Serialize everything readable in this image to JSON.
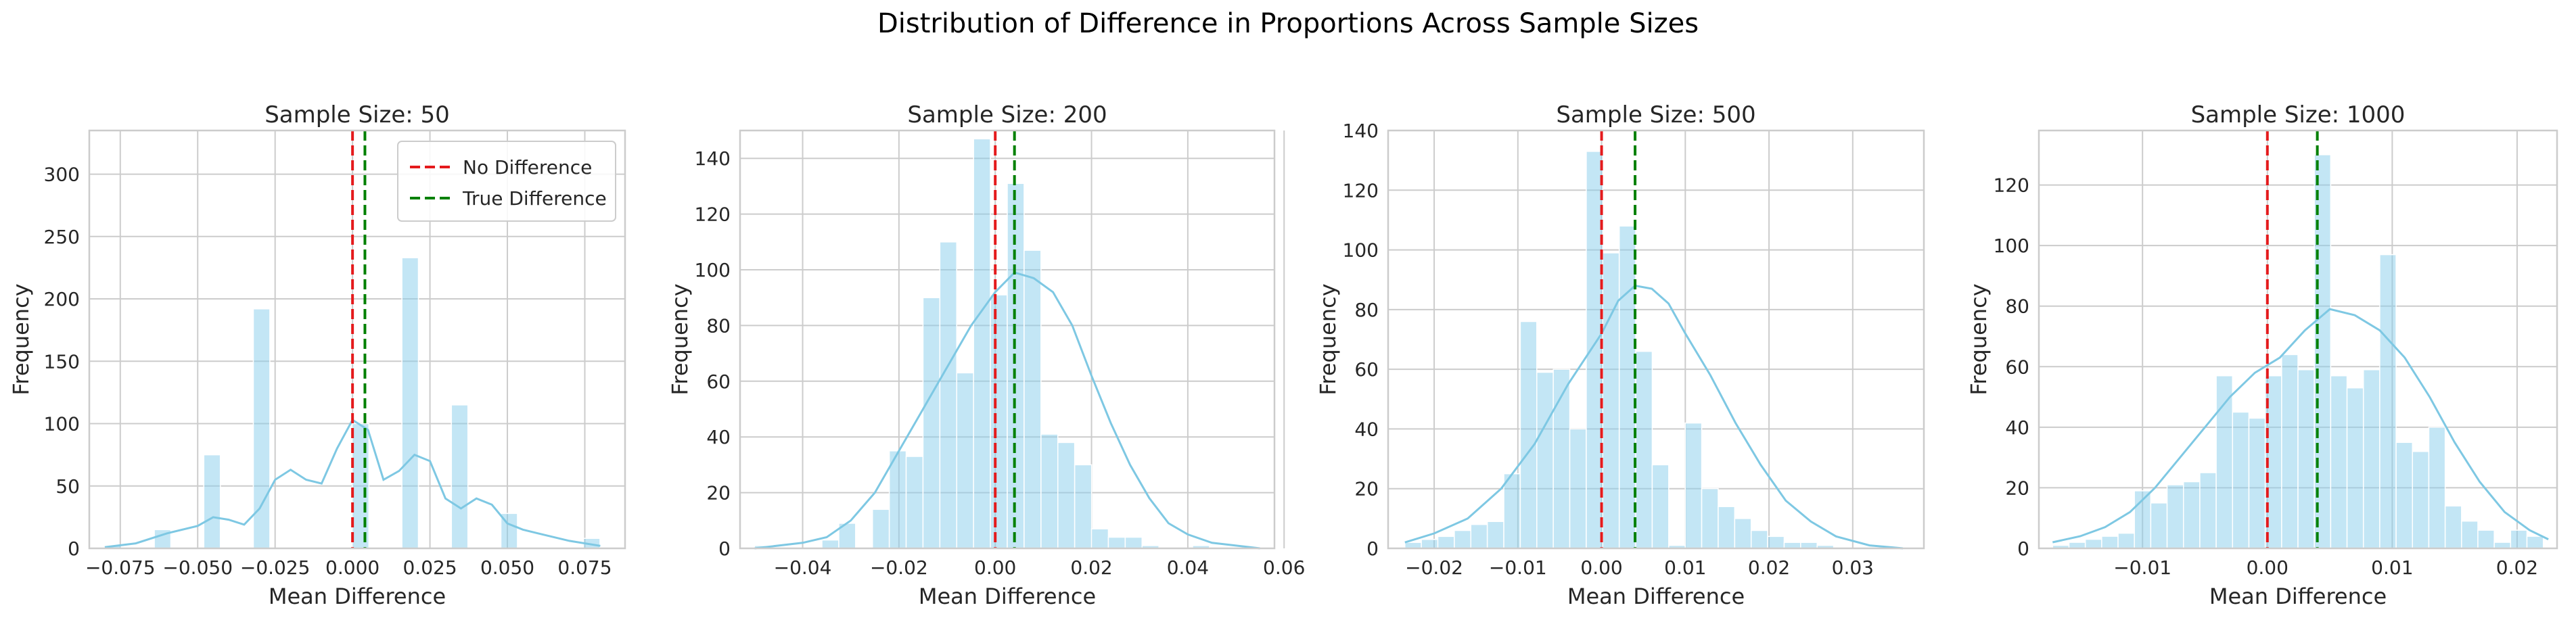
{
  "figure": {
    "title": "Distribution of Difference in Proportions Across Sample Sizes"
  },
  "colors": {
    "bar": "#87ceeb",
    "kde": "#7ec8e3",
    "no_difference": "#e41a1c",
    "true_difference": "#008000",
    "grid": "#cccccc",
    "axis_text": "#262626"
  },
  "legend": {
    "placement": "top-right of first panel",
    "items": [
      "No Difference",
      "True Difference"
    ]
  },
  "chart_data": [
    {
      "type": "bar",
      "title": "Sample Size: 50",
      "xlabel": "Mean Difference",
      "ylabel": "Frequency",
      "xlim": [
        -0.085,
        0.088
      ],
      "ylim": [
        0,
        335
      ],
      "xticks": [
        -0.075,
        -0.05,
        -0.025,
        0.0,
        0.025,
        0.05,
        0.075
      ],
      "xtick_labels": [
        "−0.075",
        "−0.050",
        "−0.025",
        "0.000",
        "0.025",
        "0.050",
        "0.075"
      ],
      "yticks": [
        0,
        50,
        100,
        150,
        200,
        250,
        300
      ],
      "ytick_labels": [
        "0",
        "50",
        "100",
        "150",
        "200",
        "250",
        "300"
      ],
      "bin_start": -0.08,
      "bin_width": 0.00533,
      "counts": [
        2,
        0,
        0,
        15,
        0,
        0,
        75,
        0,
        0,
        192,
        0,
        0,
        0,
        0,
        0,
        100,
        0,
        0,
        233,
        0,
        0,
        115,
        0,
        0,
        28,
        0,
        0,
        0,
        0,
        8
      ],
      "kde_x": [
        -0.08,
        -0.07,
        -0.06,
        -0.05,
        -0.045,
        -0.04,
        -0.035,
        -0.03,
        -0.025,
        -0.02,
        -0.015,
        -0.01,
        -0.005,
        0.0,
        0.005,
        0.01,
        0.015,
        0.02,
        0.025,
        0.03,
        0.035,
        0.04,
        0.045,
        0.05,
        0.055,
        0.06,
        0.07,
        0.08
      ],
      "kde_y": [
        1,
        4,
        12,
        18,
        25,
        23,
        19,
        32,
        55,
        63,
        55,
        52,
        80,
        103,
        95,
        55,
        62,
        75,
        70,
        40,
        32,
        40,
        35,
        20,
        15,
        12,
        6,
        2
      ],
      "no_difference": 0.0,
      "true_difference": 0.004,
      "show_legend": true
    },
    {
      "type": "bar",
      "title": "Sample Size: 200",
      "xlabel": "Mean Difference",
      "ylabel": "Frequency",
      "xlim": [
        -0.053,
        0.058
      ],
      "ylim": [
        0,
        150
      ],
      "xticks": [
        -0.04,
        -0.02,
        0.0,
        0.02,
        0.04,
        0.06
      ],
      "xtick_labels": [
        "−0.04",
        "−0.02",
        "0.00",
        "0.02",
        "0.04",
        "0.06"
      ],
      "yticks": [
        0,
        20,
        40,
        60,
        80,
        100,
        120,
        140
      ],
      "ytick_labels": [
        "0",
        "20",
        "40",
        "60",
        "80",
        "100",
        "120",
        "140"
      ],
      "bin_start": -0.05,
      "bin_width": 0.0035,
      "counts": [
        1,
        0,
        0,
        0,
        3,
        9,
        0,
        14,
        35,
        33,
        90,
        110,
        63,
        147,
        91,
        131,
        107,
        41,
        38,
        30,
        7,
        4,
        4,
        1,
        0,
        0,
        1,
        0,
        0,
        0
      ],
      "kde_x": [
        -0.05,
        -0.04,
        -0.035,
        -0.03,
        -0.025,
        -0.02,
        -0.015,
        -0.01,
        -0.005,
        0.0,
        0.004,
        0.008,
        0.012,
        0.016,
        0.02,
        0.024,
        0.028,
        0.032,
        0.036,
        0.04,
        0.045,
        0.05,
        0.055
      ],
      "kde_y": [
        0,
        2,
        4,
        10,
        20,
        35,
        50,
        65,
        80,
        92,
        99,
        97,
        92,
        80,
        62,
        45,
        30,
        18,
        9,
        5,
        2,
        1,
        0
      ],
      "no_difference": 0.0,
      "true_difference": 0.004,
      "show_legend": false
    },
    {
      "type": "bar",
      "title": "Sample Size: 500",
      "xlabel": "Mean Difference",
      "ylabel": "Frequency",
      "xlim": [
        -0.0255,
        0.0385
      ],
      "ylim": [
        0,
        140
      ],
      "xticks": [
        -0.02,
        -0.01,
        0.0,
        0.01,
        0.02,
        0.03
      ],
      "xtick_labels": [
        "−0.02",
        "−0.01",
        "0.00",
        "0.01",
        "0.02",
        "0.03"
      ],
      "yticks": [
        0,
        20,
        40,
        60,
        80,
        100,
        120,
        140
      ],
      "ytick_labels": [
        "0",
        "20",
        "40",
        "60",
        "80",
        "100",
        "120",
        "140"
      ],
      "bin_start": -0.0235,
      "bin_width": 0.00197,
      "counts": [
        2,
        3,
        4,
        6,
        8,
        9,
        25,
        76,
        59,
        60,
        40,
        133,
        99,
        108,
        66,
        28,
        1,
        42,
        20,
        14,
        10,
        6,
        4,
        2,
        2,
        1,
        0,
        0,
        0,
        0
      ],
      "kde_x": [
        -0.0235,
        -0.02,
        -0.016,
        -0.012,
        -0.008,
        -0.004,
        0.0,
        0.002,
        0.004,
        0.006,
        0.008,
        0.01,
        0.013,
        0.016,
        0.019,
        0.022,
        0.025,
        0.028,
        0.032,
        0.036
      ],
      "kde_y": [
        2,
        5,
        10,
        20,
        35,
        55,
        72,
        83,
        88,
        87,
        82,
        72,
        58,
        42,
        28,
        16,
        9,
        4,
        1,
        0
      ],
      "no_difference": 0.0,
      "true_difference": 0.004,
      "show_legend": false
    },
    {
      "type": "bar",
      "title": "Sample Size: 1000",
      "xlabel": "Mean Difference",
      "ylabel": "Frequency",
      "xlim": [
        -0.0183,
        0.0232
      ],
      "ylim": [
        0,
        138
      ],
      "xticks": [
        -0.01,
        0.0,
        0.01,
        0.02
      ],
      "xtick_labels": [
        "−0.01",
        "0.00",
        "0.01",
        "0.02"
      ],
      "yticks": [
        0,
        20,
        40,
        60,
        80,
        100,
        120
      ],
      "ytick_labels": [
        "0",
        "20",
        "40",
        "60",
        "80",
        "100",
        "120"
      ],
      "bin_start": -0.0172,
      "bin_width": 0.00131,
      "counts": [
        1,
        2,
        3,
        4,
        5,
        19,
        15,
        21,
        22,
        25,
        57,
        45,
        43,
        57,
        64,
        59,
        130,
        57,
        53,
        59,
        97,
        35,
        32,
        40,
        14,
        9,
        6,
        2,
        6,
        4
      ],
      "kde_x": [
        -0.0172,
        -0.015,
        -0.013,
        -0.011,
        -0.009,
        -0.007,
        -0.005,
        -0.003,
        -0.001,
        0.001,
        0.003,
        0.005,
        0.007,
        0.009,
        0.011,
        0.013,
        0.015,
        0.017,
        0.019,
        0.021,
        0.0225
      ],
      "kde_y": [
        2,
        4,
        7,
        12,
        20,
        30,
        40,
        50,
        58,
        63,
        72,
        79,
        77,
        72,
        63,
        50,
        35,
        22,
        12,
        6,
        3
      ],
      "no_difference": 0.0,
      "true_difference": 0.004,
      "show_legend": false
    }
  ]
}
